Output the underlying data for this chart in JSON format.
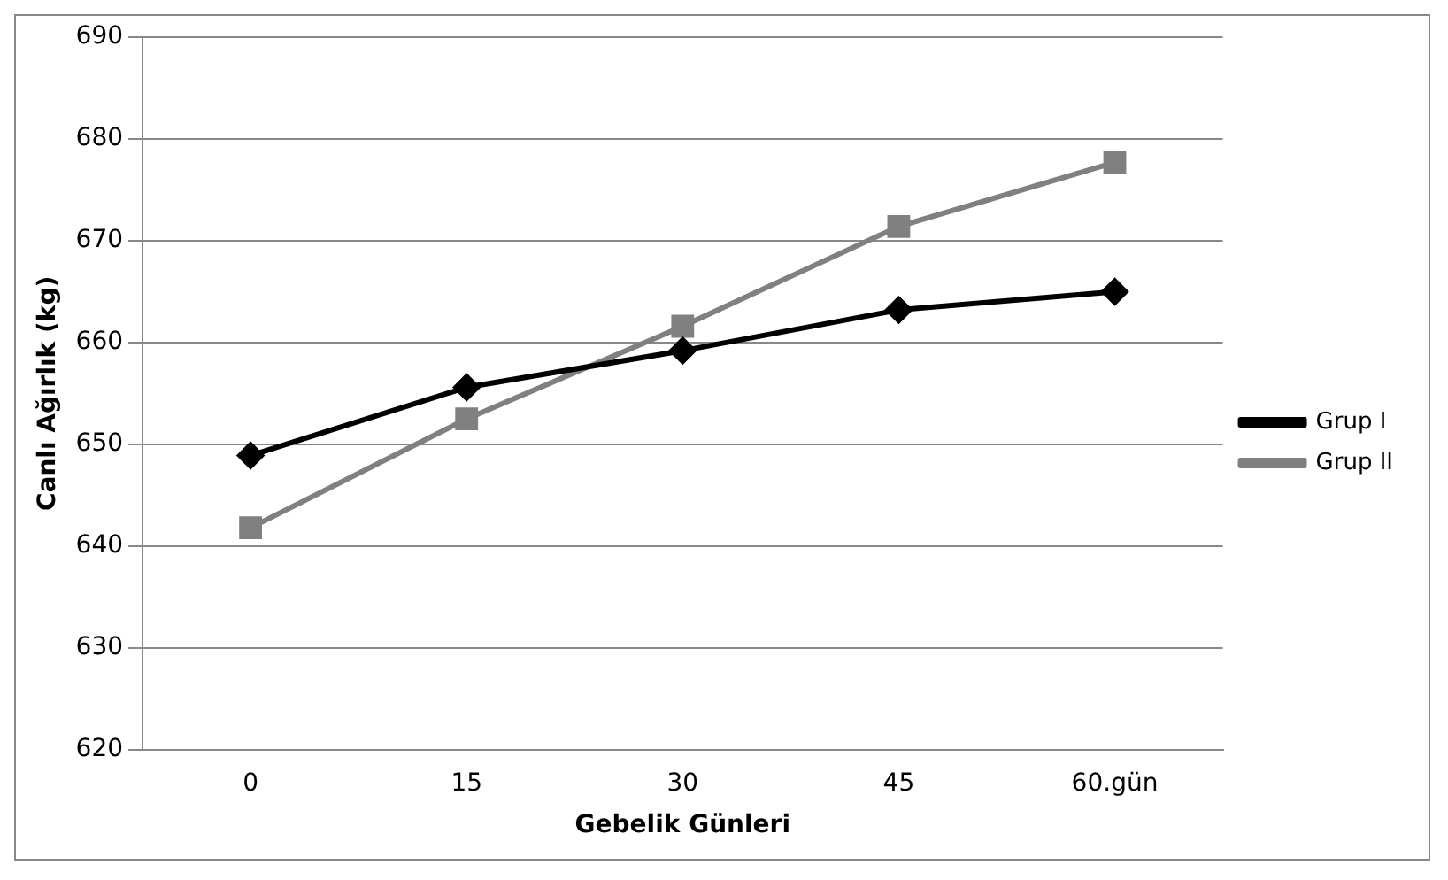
{
  "chart_data": {
    "type": "line",
    "xlabel": "Gebelik Günleri",
    "ylabel": "Canlı Ağırlık (kg)",
    "categories": [
      "0",
      "15",
      "30",
      "45",
      "60.gün"
    ],
    "series": [
      {
        "name": "Grup I",
        "color": "#000000",
        "marker": "diamond",
        "values": [
          648.9,
          655.6,
          659.2,
          663.2,
          665.0
        ]
      },
      {
        "name": "Grup II",
        "color": "#808080",
        "marker": "square",
        "values": [
          641.8,
          652.5,
          661.6,
          671.4,
          677.7
        ]
      }
    ],
    "ylim": [
      620,
      690
    ],
    "yticks": [
      620,
      630,
      640,
      650,
      660,
      670,
      680,
      690
    ],
    "grid": "y",
    "legend": "right",
    "line_style": "solid"
  }
}
